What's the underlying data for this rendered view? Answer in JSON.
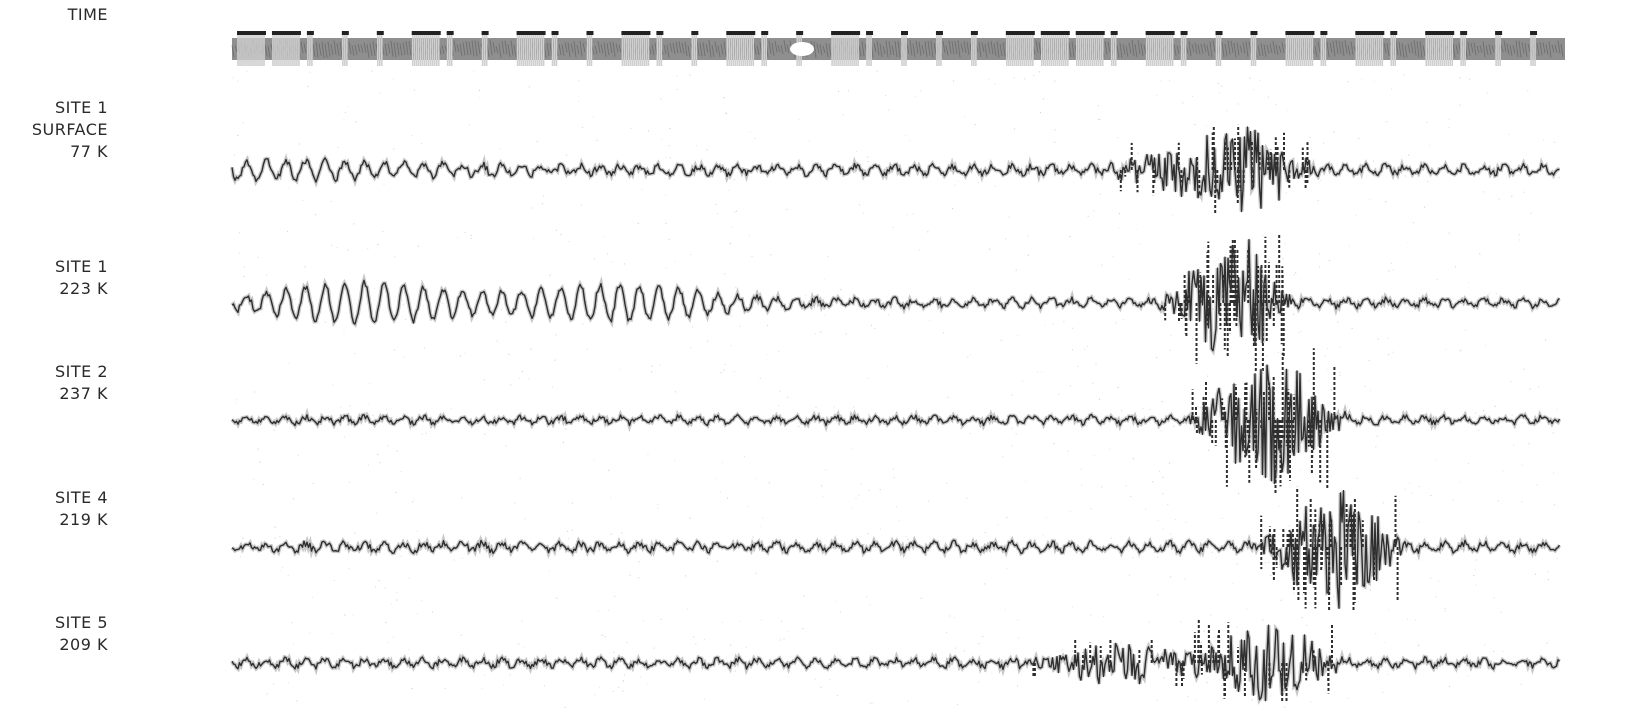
{
  "chart_data": {
    "type": "line",
    "title": "",
    "xlabel": "",
    "ylabel": "",
    "grid": false,
    "ink_color": "#2e2e2e",
    "background": "#ffffff",
    "channels": [
      {
        "id": "time",
        "label_lines": [
          "TIME"
        ],
        "kind": "time-marks",
        "marks": [
          "long",
          "long",
          "short",
          "short",
          "short",
          "long",
          "short",
          "short",
          "long",
          "short",
          "short",
          "long",
          "short",
          "short",
          "long",
          "short",
          "short",
          "long",
          "short",
          "short",
          "short",
          "short",
          "long",
          "long",
          "long",
          "short",
          "long",
          "short",
          "short",
          "short",
          "long",
          "short",
          "long",
          "short",
          "long",
          "short",
          "short",
          "short"
        ]
      },
      {
        "id": "site1-surface",
        "label_lines": [
          "SITE 1",
          "SURFACE",
          "77 K"
        ],
        "kind": "trace",
        "baseline_noise": 0.22,
        "lowfreq_bursts": [
          {
            "center": 0.05,
            "width": 0.12,
            "amplitude": 0.35
          }
        ],
        "events": [
          {
            "center": 0.72,
            "width": 0.04,
            "amplitude": 1.0
          },
          {
            "center": 0.77,
            "width": 0.03,
            "amplitude": 1.6
          }
        ]
      },
      {
        "id": "site1-223k",
        "label_lines": [
          "SITE 1",
          "223 K"
        ],
        "kind": "trace",
        "baseline_noise": 0.2,
        "lowfreq_bursts": [
          {
            "center": 0.1,
            "width": 0.08,
            "amplitude": 1.0
          },
          {
            "center": 0.29,
            "width": 0.08,
            "amplitude": 0.9
          }
        ],
        "events": [
          {
            "center": 0.73,
            "width": 0.02,
            "amplitude": 1.2
          },
          {
            "center": 0.76,
            "width": 0.025,
            "amplitude": 2.6
          }
        ]
      },
      {
        "id": "site2-237k",
        "label_lines": [
          "SITE 2",
          "237 K"
        ],
        "kind": "trace",
        "baseline_noise": 0.18,
        "lowfreq_bursts": [],
        "events": [
          {
            "center": 0.75,
            "width": 0.02,
            "amplitude": 1.4
          },
          {
            "center": 0.79,
            "width": 0.03,
            "amplitude": 2.6
          }
        ]
      },
      {
        "id": "site4-219k",
        "label_lines": [
          "SITE 4",
          "219 K"
        ],
        "kind": "trace",
        "baseline_noise": 0.22,
        "lowfreq_bursts": [],
        "events": [
          {
            "center": 0.8,
            "width": 0.02,
            "amplitude": 1.2
          },
          {
            "center": 0.84,
            "width": 0.03,
            "amplitude": 2.4
          }
        ]
      },
      {
        "id": "site5-209k",
        "label_lines": [
          "SITE 5",
          "209 K"
        ],
        "kind": "trace",
        "baseline_noise": 0.2,
        "lowfreq_bursts": [],
        "events": [
          {
            "center": 0.67,
            "width": 0.05,
            "amplitude": 0.9
          },
          {
            "center": 0.78,
            "width": 0.04,
            "amplitude": 1.6
          }
        ]
      }
    ]
  }
}
